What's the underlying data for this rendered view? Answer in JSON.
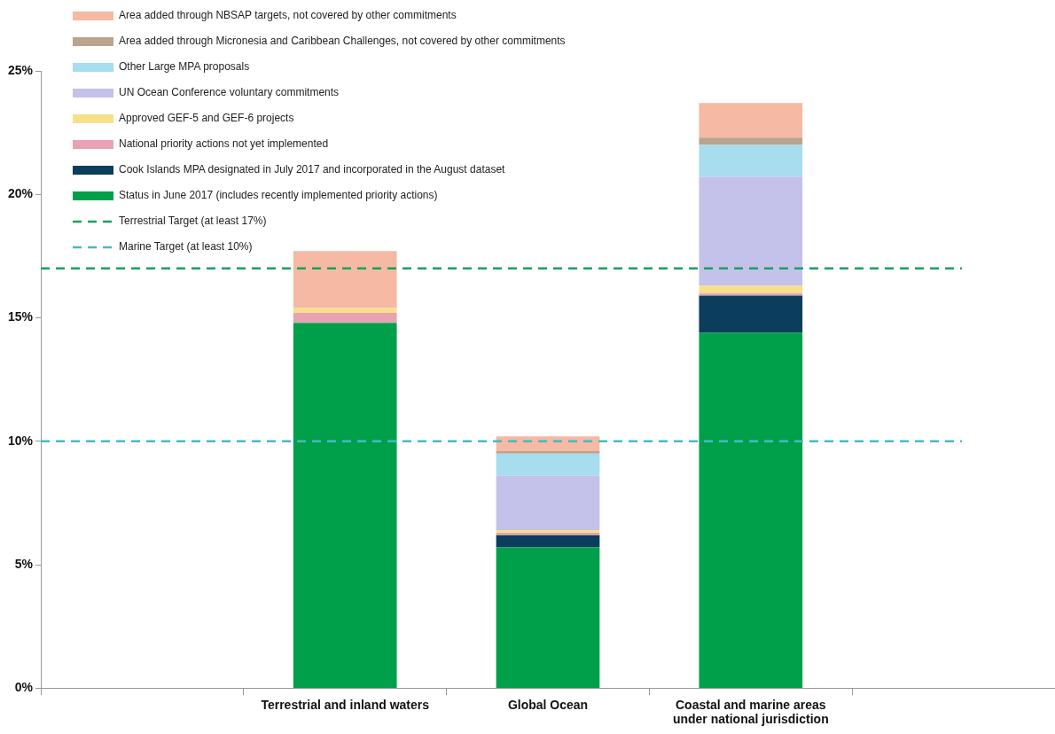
{
  "chart_data": {
    "type": "bar",
    "stacked": true,
    "categories": [
      null,
      "Terrestrial and inland waters",
      "Global Ocean",
      "Coastal and marine areas\nunder national jurisdiction",
      null
    ],
    "series": [
      {
        "name": "Status in June 2017 (includes recently implemented priority actions)",
        "color": "#00a04b",
        "values": [
          null,
          14.8,
          5.7,
          14.4,
          null
        ]
      },
      {
        "name": "Cook Islands MPA designated in July 2017 and incorporated in the August dataset",
        "color": "#0b3d5c",
        "values": [
          null,
          0,
          0.5,
          1.5,
          null
        ]
      },
      {
        "name": "National priority actions not yet implemented",
        "color": "#e8a2b2",
        "values": [
          null,
          0.4,
          0.1,
          0.1,
          null
        ]
      },
      {
        "name": "Approved GEF-5 and GEF-6 projects",
        "color": "#f7e08a",
        "values": [
          null,
          0.2,
          0.1,
          0.3,
          null
        ]
      },
      {
        "name": "UN Ocean Conference voluntary commitments",
        "color": "#c4c1ea",
        "values": [
          null,
          0,
          2.2,
          4.4,
          null
        ]
      },
      {
        "name": "Other Large MPA proposals",
        "color": "#a8dcef",
        "values": [
          null,
          0,
          0.9,
          1.3,
          null
        ]
      },
      {
        "name": "Area added through Micronesia and Caribbean Challenges, not covered by other commitments",
        "color": "#b9a48f",
        "values": [
          null,
          0,
          0.1,
          0.3,
          null
        ]
      },
      {
        "name": "Area added through NBSAP targets, not covered by other commitments",
        "color": "#f5b9a4",
        "values": [
          null,
          2.3,
          0.6,
          1.4,
          null
        ]
      }
    ],
    "ylim": [
      0,
      25
    ],
    "yticks": [
      {
        "value": 0,
        "label": "0%"
      },
      {
        "value": 5,
        "label": "5%"
      },
      {
        "value": 10,
        "label": "10%"
      },
      {
        "value": 15,
        "label": "15%"
      },
      {
        "value": 20,
        "label": "20%"
      },
      {
        "value": 25,
        "label": "25%"
      }
    ],
    "ref_lines": [
      {
        "axis": "y",
        "value": 17,
        "label": "Terrestrial Target (at least 17%)",
        "color": "#1aa060",
        "line_style": "dashed"
      },
      {
        "axis": "y",
        "value": 10,
        "label": "Marine Target (at least 10%)",
        "color": "#4bb8c4",
        "line_style": "dashed"
      }
    ],
    "grid": false,
    "legend": "top left"
  }
}
